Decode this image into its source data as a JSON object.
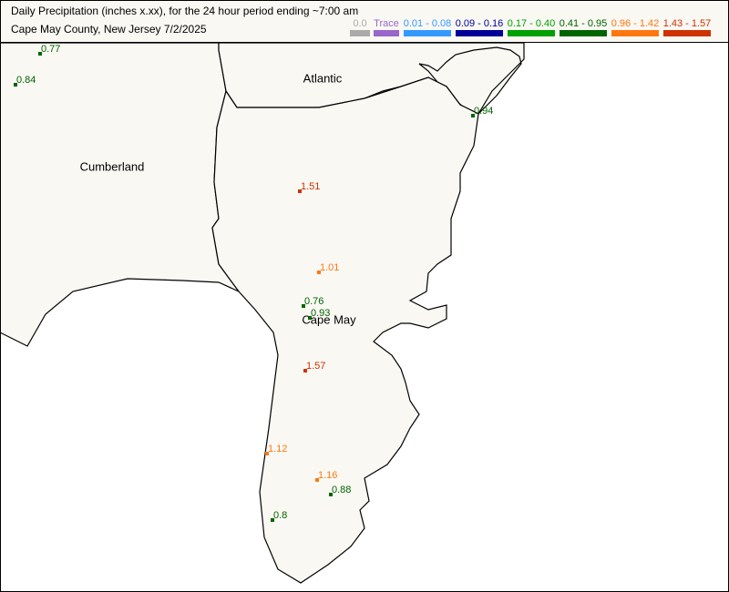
{
  "header": {
    "title": "Daily Precipitation (inches  x.xx),  for the 24 hour period ending ~7:00 am",
    "subtitle": "Cape May County, New Jersey  7/2/2025"
  },
  "legend": [
    {
      "label": "0.0",
      "color": "#aaaaaa"
    },
    {
      "label": "Trace",
      "color": "#9966cc"
    },
    {
      "label": "0.01 - 0.08",
      "color": "#3399ff"
    },
    {
      "label": "0.09 - 0.16",
      "color": "#000099"
    },
    {
      "label": "0.17 - 0.40",
      "color": "#00a000"
    },
    {
      "label": "0.41 - 0.95",
      "color": "#006400"
    },
    {
      "label": "0.96 - 1.42",
      "color": "#ff7711"
    },
    {
      "label": "1.43 - 1.57",
      "color": "#cc3300"
    }
  ],
  "counties": [
    "Atlantic",
    "Cumberland",
    "Cape May"
  ],
  "stations": [
    {
      "value": 0.77,
      "color": "#006400"
    },
    {
      "value": 0.84,
      "color": "#006400"
    },
    {
      "value": 0.94,
      "color": "#006400"
    },
    {
      "value": 1.51,
      "color": "#cc3300"
    },
    {
      "value": 1.01,
      "color": "#ff7711"
    },
    {
      "value": 0.76,
      "color": "#006400"
    },
    {
      "value": 0.93,
      "color": "#006400"
    },
    {
      "value": 1.57,
      "color": "#cc3300"
    },
    {
      "value": 1.12,
      "color": "#ff7711"
    },
    {
      "value": 1.16,
      "color": "#ff7711"
    },
    {
      "value": 0.88,
      "color": "#006400"
    },
    {
      "value": 0.8,
      "color": "#006400"
    }
  ]
}
